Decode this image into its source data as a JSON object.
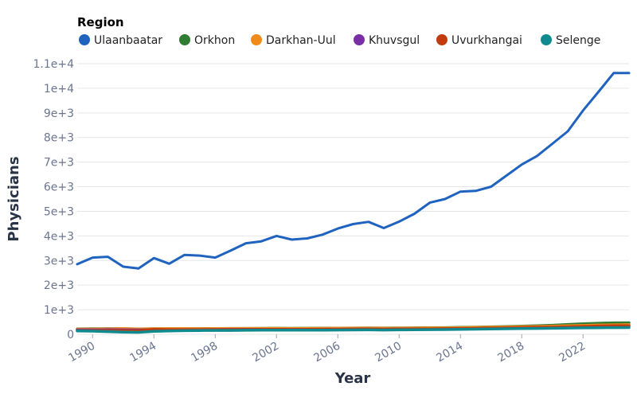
{
  "chart_data": {
    "type": "line",
    "title": "",
    "xlabel": "Year",
    "ylabel": "Physicians",
    "legend_title": "Region",
    "legend_position": "top",
    "grid": true,
    "xlim": [
      1989,
      2025
    ],
    "ylim": [
      0,
      11000
    ],
    "x_ticks": [
      1990,
      1994,
      1998,
      2002,
      2006,
      2010,
      2014,
      2018,
      2022
    ],
    "x_tick_labels": [
      "1990",
      "1994",
      "1998",
      "2002",
      "2006",
      "2010",
      "2014",
      "2018",
      "2022"
    ],
    "y_ticks": [
      0,
      1000,
      2000,
      3000,
      4000,
      5000,
      6000,
      7000,
      8000,
      9000,
      10000,
      11000
    ],
    "y_tick_labels": [
      "0",
      "1e+3",
      "2e+3",
      "3e+3",
      "4e+3",
      "5e+3",
      "6e+3",
      "7e+3",
      "8e+3",
      "9e+3",
      "1e+4",
      "1.1e+4"
    ],
    "x": [
      1989,
      1990,
      1991,
      1992,
      1993,
      1994,
      1995,
      1996,
      1997,
      1998,
      1999,
      2000,
      2001,
      2002,
      2003,
      2004,
      2005,
      2006,
      2007,
      2008,
      2009,
      2010,
      2011,
      2012,
      2013,
      2014,
      2015,
      2016,
      2017,
      2018,
      2019,
      2020,
      2021,
      2022,
      2023,
      2024,
      2025
    ],
    "series": [
      {
        "name": "Ulaanbaatar",
        "color": "#1f63bf",
        "values": [
          2850,
          3120,
          3150,
          2750,
          2680,
          3100,
          2870,
          3230,
          3200,
          3120,
          3400,
          3700,
          3780,
          4000,
          3850,
          3900,
          4050,
          4300,
          4480,
          4570,
          4320,
          4580,
          4900,
          5350,
          5500,
          5800,
          5830,
          6000,
          6450,
          6900,
          7250,
          7750,
          8250,
          9100,
          9850,
          10620,
          10620
        ]
      },
      {
        "name": "Orkhon",
        "color": "#2e7d32",
        "values": [
          220,
          225,
          230,
          225,
          220,
          225,
          228,
          230,
          232,
          235,
          238,
          240,
          242,
          245,
          243,
          245,
          248,
          252,
          256,
          258,
          255,
          258,
          262,
          268,
          272,
          280,
          290,
          305,
          315,
          330,
          350,
          370,
          400,
          430,
          450,
          465,
          470
        ]
      },
      {
        "name": "Darkhan-Uul",
        "color": "#f08a1a",
        "values": [
          210,
          215,
          220,
          235,
          215,
          225,
          230,
          232,
          230,
          232,
          235,
          238,
          240,
          240,
          238,
          240,
          242,
          245,
          248,
          250,
          245,
          250,
          255,
          258,
          262,
          270,
          280,
          290,
          300,
          310,
          320,
          330,
          345,
          360,
          375,
          385,
          390
        ]
      },
      {
        "name": "Khuvsgul",
        "color": "#7b2fa5",
        "values": [
          180,
          182,
          185,
          180,
          178,
          185,
          188,
          190,
          192,
          195,
          197,
          200,
          202,
          203,
          202,
          204,
          206,
          208,
          210,
          212,
          208,
          212,
          215,
          218,
          222,
          228,
          235,
          245,
          255,
          265,
          275,
          285,
          300,
          310,
          320,
          330,
          335
        ]
      },
      {
        "name": "Uvurkhangai",
        "color": "#c23b0f",
        "values": [
          150,
          152,
          155,
          150,
          148,
          200,
          190,
          185,
          188,
          190,
          192,
          195,
          198,
          200,
          198,
          200,
          202,
          205,
          210,
          212,
          208,
          212,
          216,
          220,
          225,
          230,
          240,
          250,
          260,
          270,
          280,
          290,
          305,
          320,
          335,
          345,
          350
        ]
      },
      {
        "name": "Selenge",
        "color": "#0f8a8f",
        "values": [
          140,
          130,
          110,
          90,
          80,
          120,
          140,
          150,
          155,
          158,
          160,
          165,
          168,
          170,
          168,
          170,
          172,
          175,
          178,
          180,
          176,
          180,
          185,
          190,
          195,
          200,
          210,
          220,
          228,
          235,
          240,
          245,
          255,
          262,
          268,
          272,
          275
        ]
      }
    ]
  }
}
